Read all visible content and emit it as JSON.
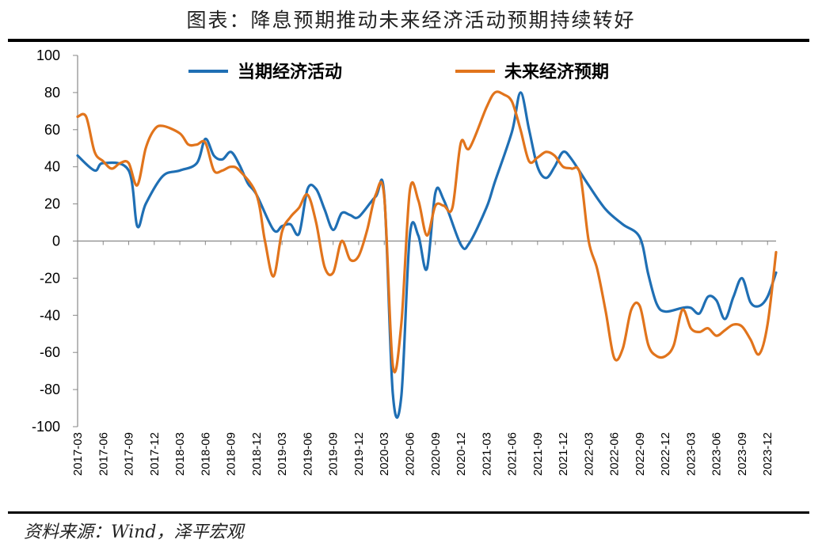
{
  "title": "图表：降息预期推动未来经济活动预期持续转好",
  "source": "资料来源：Wind，泽平宏观",
  "chart_data": {
    "type": "line",
    "title": "图表：降息预期推动未来经济活动预期持续转好",
    "ylim": [
      -100,
      100
    ],
    "yticks": [
      100,
      80,
      60,
      40,
      20,
      0,
      -20,
      -40,
      -60,
      -80,
      -100
    ],
    "x_start": "2017-03",
    "x_end": "2024-01",
    "xticks": [
      "2017-03",
      "2017-06",
      "2017-09",
      "2017-12",
      "2018-03",
      "2018-06",
      "2018-09",
      "2018-12",
      "2019-03",
      "2019-06",
      "2019-09",
      "2019-12",
      "2020-03",
      "2020-06",
      "2020-09",
      "2020-12",
      "2021-03",
      "2021-06",
      "2021-09",
      "2021-12",
      "2022-03",
      "2022-06",
      "2022-09",
      "2022-12",
      "2023-03",
      "2023-06",
      "2023-09",
      "2023-12"
    ],
    "legend_position": "top",
    "grid": false,
    "series": [
      {
        "name": "当期经济活动",
        "color": "#1f6fb4",
        "points": [
          [
            "2017-03",
            46
          ],
          [
            "2017-05",
            38
          ],
          [
            "2017-06",
            42
          ],
          [
            "2017-09",
            38
          ],
          [
            "2017-10",
            8
          ],
          [
            "2017-11",
            20
          ],
          [
            "2018-01",
            35
          ],
          [
            "2018-03",
            38
          ],
          [
            "2018-05",
            42
          ],
          [
            "2018-06",
            55
          ],
          [
            "2018-07",
            46
          ],
          [
            "2018-08",
            44
          ],
          [
            "2018-09",
            48
          ],
          [
            "2018-10",
            41
          ],
          [
            "2018-11",
            31
          ],
          [
            "2018-12",
            25
          ],
          [
            "2019-02",
            6
          ],
          [
            "2019-03",
            8
          ],
          [
            "2019-04",
            9
          ],
          [
            "2019-05",
            4
          ],
          [
            "2019-06",
            28
          ],
          [
            "2019-07",
            28
          ],
          [
            "2019-08",
            17
          ],
          [
            "2019-09",
            6
          ],
          [
            "2019-10",
            15
          ],
          [
            "2019-11",
            14
          ],
          [
            "2019-12",
            13
          ],
          [
            "2020-02",
            24
          ],
          [
            "2020-03",
            25
          ],
          [
            "2020-04",
            -82
          ],
          [
            "2020-05",
            -84
          ],
          [
            "2020-06",
            3
          ],
          [
            "2020-07",
            3
          ],
          [
            "2020-08",
            -15
          ],
          [
            "2020-09",
            26
          ],
          [
            "2020-10",
            22
          ],
          [
            "2020-12",
            -2
          ],
          [
            "2021-01",
            -1
          ],
          [
            "2021-03",
            18
          ],
          [
            "2021-04",
            32
          ],
          [
            "2021-06",
            59
          ],
          [
            "2021-07",
            80
          ],
          [
            "2021-08",
            60
          ],
          [
            "2021-09",
            40
          ],
          [
            "2021-10",
            34
          ],
          [
            "2021-11",
            40
          ],
          [
            "2021-12",
            48
          ],
          [
            "2022-01",
            44
          ],
          [
            "2022-03",
            30
          ],
          [
            "2022-05",
            17
          ],
          [
            "2022-07",
            9
          ],
          [
            "2022-09",
            2
          ],
          [
            "2022-10",
            -18
          ],
          [
            "2022-11",
            -34
          ],
          [
            "2022-12",
            -38
          ],
          [
            "2023-02",
            -36
          ],
          [
            "2023-03",
            -36
          ],
          [
            "2023-04",
            -39
          ],
          [
            "2023-05",
            -30
          ],
          [
            "2023-06",
            -32
          ],
          [
            "2023-07",
            -42
          ],
          [
            "2023-08",
            -30
          ],
          [
            "2023-09",
            -20
          ],
          [
            "2023-10",
            -33
          ],
          [
            "2023-11",
            -35
          ],
          [
            "2023-12",
            -30
          ],
          [
            "2024-01",
            -17
          ]
        ]
      },
      {
        "name": "未来经济预期",
        "color": "#e1741c",
        "points": [
          [
            "2017-03",
            67
          ],
          [
            "2017-04",
            67
          ],
          [
            "2017-05",
            48
          ],
          [
            "2017-06",
            43
          ],
          [
            "2017-07",
            39
          ],
          [
            "2017-08",
            42
          ],
          [
            "2017-09",
            42
          ],
          [
            "2017-10",
            30
          ],
          [
            "2017-11",
            50
          ],
          [
            "2017-12",
            60
          ],
          [
            "2018-01",
            62
          ],
          [
            "2018-03",
            58
          ],
          [
            "2018-04",
            52
          ],
          [
            "2018-05",
            52
          ],
          [
            "2018-06",
            53
          ],
          [
            "2018-07",
            38
          ],
          [
            "2018-08",
            38
          ],
          [
            "2018-09",
            40
          ],
          [
            "2018-10",
            38
          ],
          [
            "2018-12",
            25
          ],
          [
            "2019-01",
            0
          ],
          [
            "2019-02",
            -19
          ],
          [
            "2019-03",
            5
          ],
          [
            "2019-04",
            13
          ],
          [
            "2019-05",
            18
          ],
          [
            "2019-06",
            25
          ],
          [
            "2019-07",
            10
          ],
          [
            "2019-08",
            -14
          ],
          [
            "2019-09",
            -17
          ],
          [
            "2019-10",
            0
          ],
          [
            "2019-11",
            -10
          ],
          [
            "2019-12",
            -8
          ],
          [
            "2020-01",
            6
          ],
          [
            "2020-02",
            25
          ],
          [
            "2020-03",
            24
          ],
          [
            "2020-04",
            -67
          ],
          [
            "2020-05",
            -45
          ],
          [
            "2020-06",
            27
          ],
          [
            "2020-07",
            22
          ],
          [
            "2020-08",
            3
          ],
          [
            "2020-09",
            19
          ],
          [
            "2020-10",
            19
          ],
          [
            "2020-11",
            18
          ],
          [
            "2020-12",
            53
          ],
          [
            "2021-01",
            50
          ],
          [
            "2021-03",
            72
          ],
          [
            "2021-04",
            80
          ],
          [
            "2021-05",
            79
          ],
          [
            "2021-06",
            75
          ],
          [
            "2021-07",
            60
          ],
          [
            "2021-08",
            43
          ],
          [
            "2021-09",
            45
          ],
          [
            "2021-10",
            48
          ],
          [
            "2021-11",
            46
          ],
          [
            "2021-12",
            40
          ],
          [
            "2022-01",
            39
          ],
          [
            "2022-02",
            36
          ],
          [
            "2022-03",
            0
          ],
          [
            "2022-04",
            -15
          ],
          [
            "2022-05",
            -38
          ],
          [
            "2022-06",
            -63
          ],
          [
            "2022-07",
            -58
          ],
          [
            "2022-08",
            -37
          ],
          [
            "2022-09",
            -35
          ],
          [
            "2022-10",
            -56
          ],
          [
            "2022-11",
            -62
          ],
          [
            "2022-12",
            -62
          ],
          [
            "2023-01",
            -56
          ],
          [
            "2023-02",
            -37
          ],
          [
            "2023-03",
            -47
          ],
          [
            "2023-04",
            -49
          ],
          [
            "2023-05",
            -47
          ],
          [
            "2023-06",
            -51
          ],
          [
            "2023-07",
            -48
          ],
          [
            "2023-08",
            -45
          ],
          [
            "2023-09",
            -46
          ],
          [
            "2023-10",
            -53
          ],
          [
            "2023-11",
            -61
          ],
          [
            "2023-12",
            -45
          ],
          [
            "2024-01",
            -6
          ]
        ]
      }
    ]
  }
}
